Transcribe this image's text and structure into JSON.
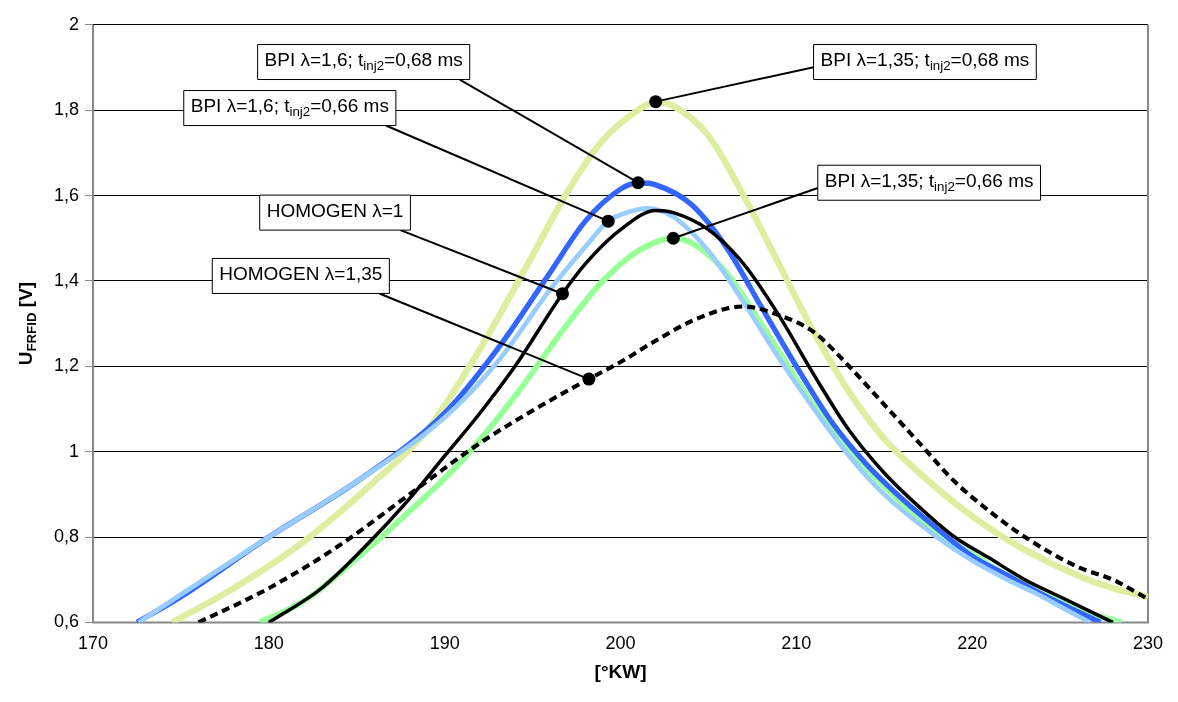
{
  "chart_data": {
    "type": "line",
    "xlabel": "[°KW]",
    "ylabel": "U$_{FRFID}$ [V]",
    "xlim": [
      170,
      230
    ],
    "xticks": [
      170,
      180,
      190,
      200,
      210,
      220,
      230
    ],
    "ylim": [
      0.6,
      2
    ],
    "yticks": [
      {
        "value": 0.6,
        "label": "0,6"
      },
      {
        "value": 0.8,
        "label": "0,8"
      },
      1,
      {
        "value": 1.2,
        "label": "1,2"
      },
      {
        "value": 1.4,
        "label": "1,4"
      },
      {
        "value": 1.6,
        "label": "1,6"
      },
      {
        "value": 1.8,
        "label": "1,8"
      },
      2
    ],
    "grid": "y",
    "legend": false,
    "marker": "none",
    "series": [
      {
        "name": "HOMOGEN λ=1",
        "color": "#000000",
        "line_style": "solid",
        "x": [
          180,
          183,
          186,
          188,
          190,
          192,
          194,
          196.7,
          198,
          200,
          202,
          203,
          205,
          207,
          209,
          211,
          213,
          215,
          217,
          219,
          221,
          223,
          225,
          227,
          228
        ],
        "values": [
          0.6,
          0.68,
          0.8,
          0.89,
          0.99,
          1.09,
          1.2,
          1.37,
          1.44,
          1.52,
          1.565,
          1.56,
          1.52,
          1.44,
          1.32,
          1.18,
          1.05,
          0.95,
          0.87,
          0.8,
          0.75,
          0.7,
          0.66,
          0.62,
          0.6
        ]
      },
      {
        "name": "HOMOGEN λ=1,35",
        "color": "#000000",
        "line_style": "dashed",
        "x": [
          176,
          180,
          184,
          188,
          192,
          196,
          198.2,
          200,
          202,
          204,
          206,
          207,
          209,
          211,
          213,
          215,
          217,
          219,
          221,
          223,
          226,
          228,
          230
        ],
        "values": [
          0.6,
          0.68,
          0.78,
          0.9,
          1.02,
          1.12,
          1.17,
          1.21,
          1.26,
          1.305,
          1.335,
          1.34,
          1.32,
          1.28,
          1.2,
          1.11,
          1.02,
          0.93,
          0.86,
          0.8,
          0.73,
          0.7,
          0.655
        ]
      },
      {
        "name": "BPI λ=1,6; t$_{inj2}$=0,66 ms",
        "color": "#99ccff",
        "line_style": "solid",
        "x": [
          172.6,
          180,
          185,
          190,
          193,
          196,
          198,
          199.3,
          200,
          201.5,
          203,
          205,
          207,
          209,
          211,
          213,
          215,
          218,
          220,
          222,
          224,
          226,
          226.7
        ],
        "values": [
          0.6,
          0.8,
          0.93,
          1.08,
          1.21,
          1.38,
          1.48,
          1.54,
          1.555,
          1.57,
          1.55,
          1.47,
          1.35,
          1.22,
          1.1,
          0.99,
          0.9,
          0.8,
          0.745,
          0.7,
          0.66,
          0.615,
          0.6
        ]
      },
      {
        "name": "BPI λ=1,6; t$_{inj2}$=0,68 ms",
        "color": "#3366ff",
        "line_style": "solid",
        "x": [
          172.5,
          175,
          180,
          185,
          190,
          193,
          196,
          198,
          200,
          201,
          202,
          204,
          206,
          208,
          210,
          212,
          214,
          216,
          218,
          220,
          222,
          224,
          226,
          227.3
        ],
        "values": [
          0.6,
          0.66,
          0.8,
          0.93,
          1.09,
          1.24,
          1.42,
          1.54,
          1.615,
          1.63,
          1.625,
          1.58,
          1.48,
          1.34,
          1.2,
          1.07,
          0.97,
          0.89,
          0.82,
          0.755,
          0.71,
          0.665,
          0.625,
          0.6
        ]
      },
      {
        "name": "BPI λ=1,35; t$_{inj2}$=0,66 ms",
        "color": "#99ff99",
        "line_style": "solid",
        "x": [
          179.5,
          182,
          185,
          188,
          191,
          194,
          197,
          199,
          201,
          203,
          204,
          206,
          208,
          210,
          212,
          214,
          216,
          218,
          220,
          222,
          224,
          226,
          228.5
        ],
        "values": [
          0.6,
          0.65,
          0.75,
          0.86,
          0.98,
          1.13,
          1.3,
          1.4,
          1.47,
          1.5,
          1.49,
          1.42,
          1.3,
          1.17,
          1.05,
          0.96,
          0.88,
          0.81,
          0.76,
          0.71,
          0.67,
          0.63,
          0.6
        ]
      },
      {
        "name": "BPI λ=1,35; t$_{inj2}$=0,68 ms",
        "color": "#ddeea0",
        "line_style": "solid",
        "x": [
          174.5,
          178,
          182,
          186,
          189,
          192,
          195,
          197,
          199,
          201,
          202,
          203,
          205,
          207,
          209,
          211,
          213,
          215,
          217,
          219,
          221,
          223,
          226,
          228,
          230
        ],
        "values": [
          0.6,
          0.68,
          0.79,
          0.93,
          1.05,
          1.24,
          1.46,
          1.61,
          1.73,
          1.8,
          1.82,
          1.81,
          1.74,
          1.6,
          1.44,
          1.28,
          1.14,
          1.03,
          0.95,
          0.88,
          0.82,
          0.77,
          0.71,
          0.68,
          0.66
        ]
      }
    ]
  }
}
